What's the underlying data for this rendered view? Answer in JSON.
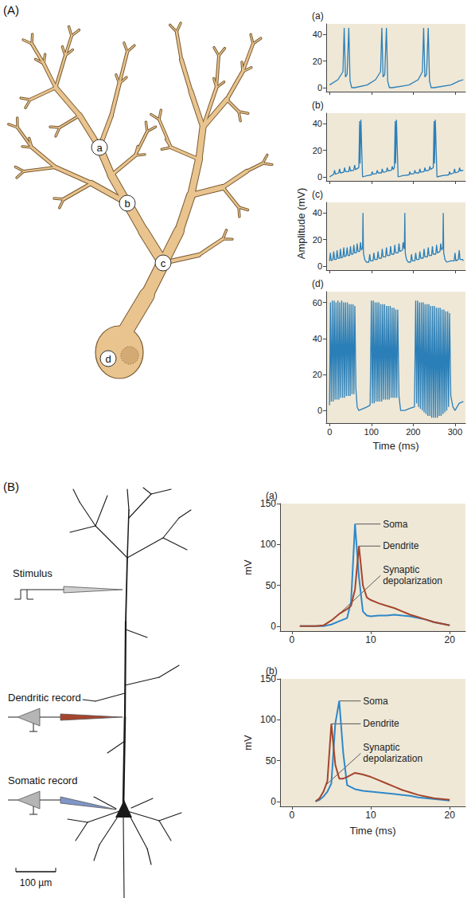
{
  "panels": [
    {
      "label": "(A)",
      "sites": [
        "a",
        "b",
        "c",
        "d"
      ],
      "ylabel": "Amplitude (mV)"
    },
    {
      "label": "(B)",
      "electrodes": [
        "Stimulus",
        "Dendritic record",
        "Somatic record"
      ],
      "scale_bar": "100 µm"
    }
  ],
  "chart_data": [
    {
      "type": "line",
      "title": "(a)",
      "grid": false,
      "tick_labels": "y",
      "xlim": [
        -8,
        325
      ],
      "xticks": [
        0,
        100,
        200,
        300
      ],
      "ylim": [
        -3,
        48
      ],
      "yticks": [
        0,
        20,
        40
      ],
      "x": [
        0,
        20,
        32,
        35,
        38,
        42,
        46,
        49,
        53,
        60,
        90,
        110,
        122,
        125,
        128,
        132,
        136,
        139,
        143,
        150,
        190,
        212,
        222,
        225,
        228,
        232,
        236,
        239,
        243,
        250,
        290,
        310,
        320
      ],
      "series": [
        {
          "color": "#2b7fb8",
          "values": [
            2,
            6,
            12,
            45,
            8,
            10,
            45,
            5,
            0,
            0,
            2,
            6,
            12,
            45,
            8,
            10,
            45,
            5,
            0,
            0,
            2,
            6,
            12,
            45,
            8,
            10,
            45,
            5,
            0,
            0,
            2,
            5,
            6
          ]
        }
      ]
    },
    {
      "type": "line",
      "title": "(b)",
      "grid": false,
      "tick_labels": "y",
      "xlim": [
        -8,
        325
      ],
      "xticks": [
        0,
        100,
        200,
        300
      ],
      "ylim": [
        -3,
        48
      ],
      "yticks": [
        0,
        20,
        40
      ],
      "x": [
        0,
        10,
        12,
        14,
        22,
        24,
        26,
        34,
        36,
        38,
        46,
        48,
        50,
        58,
        60,
        62,
        70,
        72,
        73,
        75,
        77,
        79,
        90,
        100,
        102,
        104,
        112,
        114,
        116,
        124,
        126,
        128,
        136,
        138,
        140,
        148,
        150,
        152,
        155,
        157,
        158,
        160,
        162,
        164,
        175,
        190,
        192,
        194,
        202,
        204,
        206,
        214,
        216,
        218,
        226,
        228,
        230,
        238,
        240,
        242,
        248,
        250,
        251,
        253,
        255,
        257,
        270,
        285,
        287,
        289,
        297,
        299,
        301,
        309,
        311,
        313,
        320
      ],
      "series": [
        {
          "color": "#2b7fb8",
          "values": [
            0,
            2,
            5,
            2,
            3,
            6,
            3,
            3.5,
            7,
            4,
            4,
            8,
            4.5,
            5,
            9,
            5.5,
            7,
            42,
            10,
            43,
            20,
            0,
            1,
            1.5,
            4,
            2,
            2.5,
            5,
            3,
            3,
            6,
            3.5,
            4,
            7,
            4.5,
            5,
            8,
            5.5,
            7,
            42,
            10,
            43,
            20,
            0,
            1,
            1.5,
            4,
            2,
            2.5,
            5,
            3,
            3,
            6,
            3.5,
            4,
            7,
            4.5,
            5,
            8,
            5.5,
            7,
            42,
            10,
            43,
            20,
            0,
            1,
            1.5,
            4,
            2,
            3,
            6,
            3,
            4,
            7,
            4.5,
            5
          ]
        }
      ]
    },
    {
      "type": "line",
      "title": "(c)",
      "grid": false,
      "tick_labels": "y",
      "xlim": [
        -8,
        325
      ],
      "xticks": [
        0,
        100,
        200,
        300
      ],
      "ylim": [
        -3,
        48
      ],
      "yticks": [
        0,
        20,
        40
      ],
      "x": [
        0,
        2,
        4,
        8,
        10,
        12,
        16,
        18,
        20,
        24,
        26,
        28,
        32,
        34,
        36,
        40,
        42,
        44,
        48,
        50,
        52,
        56,
        58,
        60,
        64,
        66,
        68,
        72,
        74,
        76,
        79,
        80,
        81,
        84,
        88,
        94,
        96,
        98,
        104,
        106,
        108,
        114,
        116,
        118,
        124,
        126,
        128,
        134,
        136,
        138,
        144,
        146,
        148,
        154,
        156,
        158,
        164,
        166,
        168,
        174,
        176,
        178,
        179,
        180,
        181,
        184,
        188,
        194,
        196,
        198,
        204,
        206,
        208,
        214,
        216,
        218,
        224,
        226,
        228,
        234,
        236,
        238,
        244,
        246,
        248,
        254,
        256,
        258,
        264,
        266,
        268,
        271,
        272,
        273,
        276,
        280,
        290,
        298,
        300,
        302,
        308,
        310,
        312,
        318,
        320
      ],
      "series": [
        {
          "color": "#2b7fb8",
          "values": [
            4,
            10,
            4,
            5,
            11,
            5,
            5,
            12,
            6,
            6,
            13,
            6,
            7,
            14,
            7,
            8,
            14,
            8,
            8,
            15,
            9,
            9,
            16,
            10,
            10,
            17,
            11,
            11,
            18,
            12,
            14,
            40,
            10,
            5,
            3,
            3,
            9,
            4,
            4,
            10,
            5,
            5,
            11,
            6,
            6,
            13,
            7,
            7,
            14,
            8,
            8,
            15,
            9,
            9,
            16,
            10,
            10,
            17,
            11,
            12,
            18,
            13,
            15,
            40,
            10,
            5,
            3,
            3,
            9,
            4,
            4,
            10,
            5,
            5,
            11,
            6,
            6,
            13,
            7,
            7,
            14,
            8,
            8,
            15,
            9,
            9,
            16,
            10,
            11,
            17,
            12,
            14,
            40,
            10,
            5,
            3,
            4,
            4,
            10,
            4,
            5,
            12,
            5,
            5,
            4
          ]
        }
      ]
    },
    {
      "type": "line",
      "title": "(d)",
      "grid": false,
      "xlabel": "Time (ms)",
      "xlim": [
        -8,
        325
      ],
      "xticks": [
        0,
        100,
        200,
        300
      ],
      "ylim": [
        -7,
        66
      ],
      "yticks": [
        0,
        20,
        40,
        60
      ],
      "x": [
        0,
        2,
        4.2,
        6.5,
        8.7,
        11,
        13.2,
        15.5,
        17.7,
        20,
        22.2,
        24.5,
        26.7,
        29,
        31.2,
        33.5,
        35.7,
        38,
        40.2,
        42.5,
        44.7,
        47,
        49.2,
        51.5,
        53.7,
        56,
        58.2,
        60.5,
        63,
        66,
        70,
        80,
        90,
        97,
        100,
        102.2,
        104.5,
        106.7,
        109,
        111.2,
        113.5,
        115.7,
        118,
        120.2,
        122.5,
        124.7,
        127,
        129.2,
        131.5,
        133.7,
        136,
        138.2,
        140.5,
        142.7,
        145,
        147.2,
        149.5,
        151.7,
        154,
        156.2,
        158.5,
        160.7,
        163,
        166,
        170,
        180,
        190,
        203,
        206,
        208.2,
        210.5,
        212.7,
        215,
        217.2,
        219.5,
        221.7,
        224,
        226.2,
        228.5,
        230.7,
        233,
        235.2,
        237.5,
        239.7,
        242,
        244.2,
        246.5,
        248.7,
        251,
        253.2,
        255.5,
        257.7,
        260,
        262.2,
        264.5,
        266.7,
        269,
        271.2,
        273.5,
        275.7,
        278,
        280.2,
        282.5,
        284.7,
        287,
        290,
        295,
        300,
        310,
        320
      ],
      "series": [
        {
          "color": "#2b7fb8",
          "values": [
            3,
            60,
            5,
            61,
            5,
            61,
            6,
            60,
            6,
            61,
            6,
            60,
            7,
            61,
            7,
            60,
            7,
            60,
            8,
            60,
            8,
            59,
            8,
            59,
            9,
            59,
            9,
            58,
            12,
            2,
            0,
            1,
            2,
            3,
            61,
            4,
            61,
            4,
            60,
            5,
            60,
            5,
            60,
            5,
            59,
            5,
            59,
            6,
            59,
            6,
            58,
            6,
            58,
            6,
            58,
            7,
            57,
            7,
            57,
            7,
            56,
            7,
            56,
            8,
            0,
            0,
            1,
            2,
            61,
            4,
            61,
            2,
            60,
            1,
            60,
            0,
            60,
            -1,
            59,
            -2,
            59,
            -3,
            59,
            -3,
            58,
            -4,
            58,
            -4,
            58,
            -4,
            57,
            -4,
            57,
            -3,
            57,
            -3,
            56,
            -2,
            56,
            -1,
            55,
            0,
            55,
            2,
            54,
            8,
            2,
            0,
            4,
            5
          ]
        }
      ]
    },
    {
      "type": "line",
      "title": "(a)",
      "grid": false,
      "ylabel": "mV",
      "xlim": [
        -1.5,
        22
      ],
      "xticks": [
        0,
        10,
        20
      ],
      "ylim": [
        -6,
        150
      ],
      "yticks": [
        0,
        50,
        100,
        150
      ],
      "x": [
        1,
        2,
        3,
        4,
        5,
        6,
        7,
        7.5,
        8,
        8.5,
        9,
        9.5,
        10,
        11,
        12,
        13,
        14,
        15,
        16,
        17,
        18,
        19,
        20
      ],
      "series": [
        {
          "name": "Soma",
          "color": "#2f88c8",
          "values": [
            0,
            0,
            0,
            0,
            2,
            6,
            10,
            30,
            125,
            60,
            18,
            13,
            12,
            13,
            13,
            14,
            13,
            12,
            10,
            8,
            5,
            3,
            1
          ]
        },
        {
          "name": "Dendrite",
          "color": "#a5452c",
          "values": [
            0,
            0,
            0,
            1,
            7,
            15,
            21,
            25,
            45,
            98,
            50,
            35,
            32,
            28,
            25,
            22,
            18,
            14,
            11,
            8,
            5,
            3,
            1
          ]
        }
      ],
      "annotations": [
        {
          "text": "Soma",
          "x": 8,
          "y": 125
        },
        {
          "text": "Dendrite",
          "x": 8.5,
          "y": 98
        },
        {
          "text": "Synaptic depolarization",
          "x": 6,
          "y": 15
        }
      ]
    },
    {
      "type": "line",
      "title": "(b)",
      "grid": false,
      "ylabel": "mV",
      "xlabel": "Time (ms)",
      "xlim": [
        -1.5,
        22
      ],
      "xticks": [
        0,
        10,
        20
      ],
      "ylim": [
        -6,
        150
      ],
      "yticks": [
        0,
        50,
        100,
        150
      ],
      "x": [
        3,
        3.5,
        4,
        4.5,
        5,
        5.5,
        6,
        6.5,
        7,
        8,
        9,
        10,
        11,
        12,
        13,
        14,
        15,
        16,
        17,
        18,
        19,
        20
      ],
      "series": [
        {
          "name": "Soma",
          "color": "#2f88c8",
          "values": [
            0,
            2,
            6,
            12,
            22,
            95,
            123,
            60,
            20,
            15,
            13,
            12,
            11,
            10,
            9,
            8,
            7,
            5,
            4,
            3,
            2,
            1
          ]
        },
        {
          "name": "Dendrite",
          "color": "#a5452c",
          "values": [
            0,
            4,
            12,
            25,
            95,
            45,
            28,
            28,
            30,
            35,
            33,
            30,
            26,
            22,
            18,
            14,
            11,
            8,
            6,
            4,
            3,
            2
          ]
        }
      ],
      "annotations": [
        {
          "text": "Soma",
          "x": 6,
          "y": 123
        },
        {
          "text": "Dendrite",
          "x": 5,
          "y": 95
        },
        {
          "text": "Synaptic depolarization",
          "x": 4.3,
          "y": 20
        }
      ]
    }
  ]
}
